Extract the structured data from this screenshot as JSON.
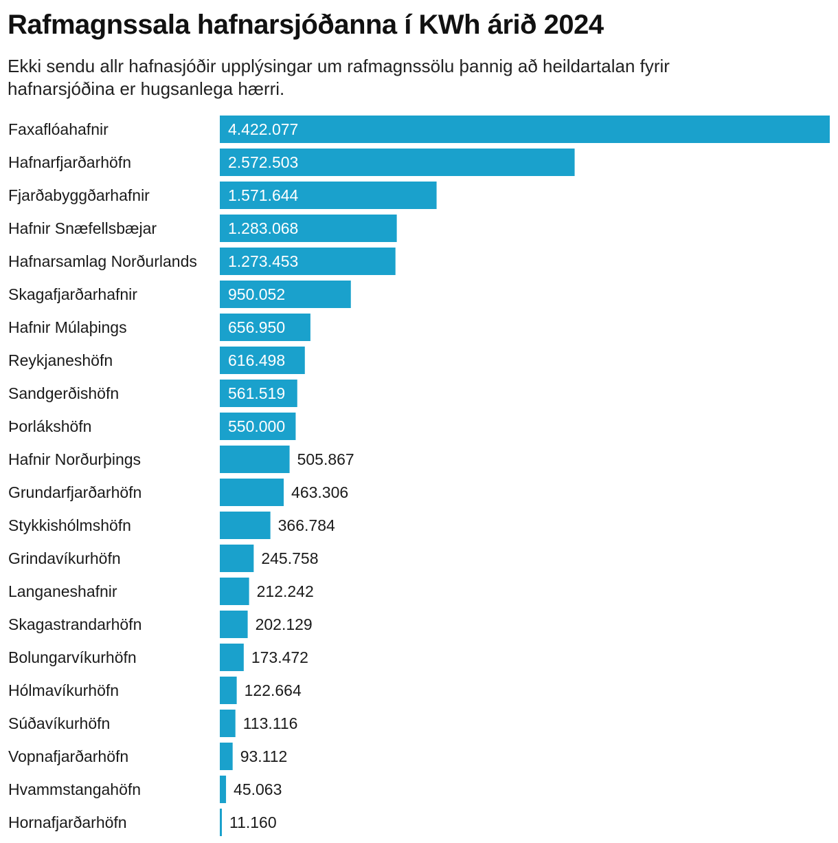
{
  "title": "Rafmagnssala hafnarsjóðanna í KWh árið 2024",
  "subtitle": "Ekki sendu allr hafnasjóðir upplýsingar um rafmagnssölu þannig að heildartalan fyrir hafnarsjóðina er hugsanlega hærri.",
  "colors": {
    "bar": "#1aa1cc",
    "label_inside": "#ffffff",
    "label_outside": "#1a1a1a"
  },
  "chart_data": {
    "type": "bar",
    "orientation": "horizontal",
    "title": "Rafmagnssala hafnarsjóðanna í KWh árið 2024",
    "subtitle": "Ekki sendu allr hafnasjóðir upplýsingar um rafmagnssölu þannig að heildartalan fyrir hafnarsjóðina er hugsanlega hærri.",
    "xlabel": "",
    "ylabel": "",
    "grid": false,
    "legend": "none",
    "categories": [
      "Faxaflóahafnir",
      "Hafnarfjarðarhöfn",
      "Fjarðabyggðarhafnir",
      "Hafnir Snæfellsbæjar",
      "Hafnarsamlag Norðurlands",
      "Skagafjarðarhafnir",
      "Hafnir Múlaþings",
      "Reykjaneshöfn",
      "Sandgerðishöfn",
      "Þorlákshöfn",
      "Hafnir Norðurþings",
      "Grundarfjarðarhöfn",
      "Stykkishólmshöfn",
      "Grindavíkurhöfn",
      "Langaneshafnir",
      "Skagastrandarhöfn",
      "Bolungarvíkurhöfn",
      "Hólmavíkurhöfn",
      "Súðavíkurhöfn",
      "Vopnafjarðarhöfn",
      "Hvammstangahöfn",
      "Hornafjarðarhöfn"
    ],
    "values": [
      4422077,
      2572503,
      1571644,
      1283068,
      1273453,
      950052,
      656950,
      616498,
      561519,
      550000,
      505867,
      463306,
      366784,
      245758,
      212242,
      202129,
      173472,
      122664,
      113116,
      93112,
      45063,
      11160
    ],
    "value_labels": [
      "4.422.077",
      "2.572.503",
      "1.571.644",
      "1.283.068",
      "1.273.453",
      "950.052",
      "656.950",
      "616.498",
      "561.519",
      "550.000",
      "505.867",
      "463.306",
      "366.784",
      "245.758",
      "212.242",
      "202.129",
      "173.472",
      "122.664",
      "113.116",
      "93.112",
      "45.063",
      "11.160"
    ],
    "xlim": [
      0,
      4422077
    ]
  }
}
